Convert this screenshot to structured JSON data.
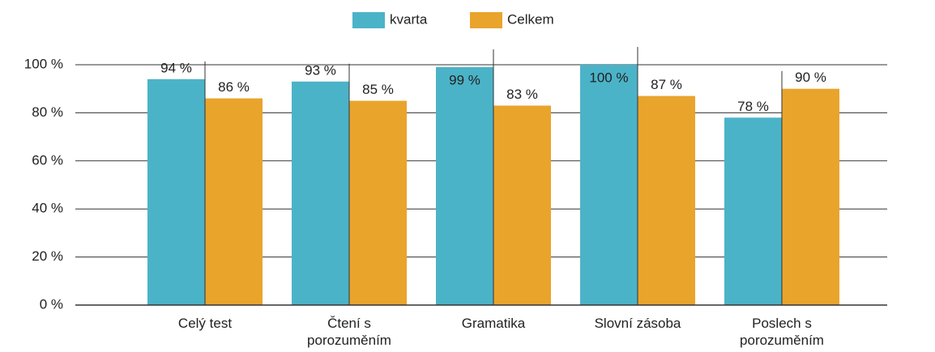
{
  "chart_data": {
    "type": "bar",
    "categories": [
      "Celý test",
      "Čtení s porozuměním",
      "Gramatika",
      "Slovní zásoba",
      "Poslech s porozuměním"
    ],
    "series": [
      {
        "name": "kvarta",
        "color": "#4bb3c8",
        "values": [
          94,
          93,
          99,
          100,
          78
        ],
        "value_labels": [
          "94 %",
          "93 %",
          "99 %",
          "100 %",
          "78 %"
        ]
      },
      {
        "name": "Celkem",
        "color": "#e9a42c",
        "values": [
          86,
          85,
          83,
          87,
          90
        ],
        "value_labels": [
          "86 %",
          "85 %",
          "83 %",
          "87 %",
          "90 %"
        ]
      }
    ],
    "ylim": [
      0,
      100
    ],
    "yticks": [
      {
        "value": 0,
        "label": "0 %"
      },
      {
        "value": 20,
        "label": "20 %"
      },
      {
        "value": 40,
        "label": "40 %"
      },
      {
        "value": 60,
        "label": "60 %"
      },
      {
        "value": 80,
        "label": "80 %"
      },
      {
        "value": 100,
        "label": "100 %"
      }
    ],
    "grid": true,
    "legend": "top"
  }
}
